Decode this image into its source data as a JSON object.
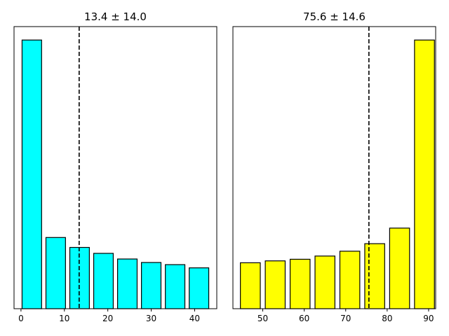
{
  "chart_data": [
    {
      "type": "bar",
      "title": "13.4 ± 14.0",
      "x": [
        2.5,
        8,
        13.5,
        19,
        24.5,
        30,
        35.5,
        41
      ],
      "values": [
        1.0,
        0.265,
        0.228,
        0.206,
        0.185,
        0.172,
        0.164,
        0.152
      ],
      "bar_width": 4.5,
      "xlim": [
        -1.6,
        45.1
      ],
      "ylim": [
        0,
        1.05
      ],
      "xticks": [
        0,
        10,
        20,
        30,
        40
      ],
      "xtick_labels": [
        "0",
        "10",
        "20",
        "30",
        "40"
      ],
      "mean_line": 13.4,
      "bar_color": "#00ffff",
      "edge_color": "#000000",
      "yaxis_ticks": false,
      "grid": false
    },
    {
      "type": "bar",
      "title": "75.6 ± 14.6",
      "x": [
        47,
        53,
        59,
        65,
        71,
        77,
        83,
        89
      ],
      "values": [
        0.171,
        0.178,
        0.184,
        0.196,
        0.214,
        0.242,
        0.3,
        1.0
      ],
      "bar_width": 4.8,
      "xlim": [
        42.8,
        91.7
      ],
      "ylim": [
        0,
        1.05
      ],
      "xticks": [
        50,
        60,
        70,
        80,
        90
      ],
      "xtick_labels": [
        "50",
        "60",
        "70",
        "80",
        "90"
      ],
      "mean_line": 75.6,
      "bar_color": "#ffff00",
      "edge_color": "#000000",
      "yaxis_ticks": false,
      "grid": false
    }
  ]
}
